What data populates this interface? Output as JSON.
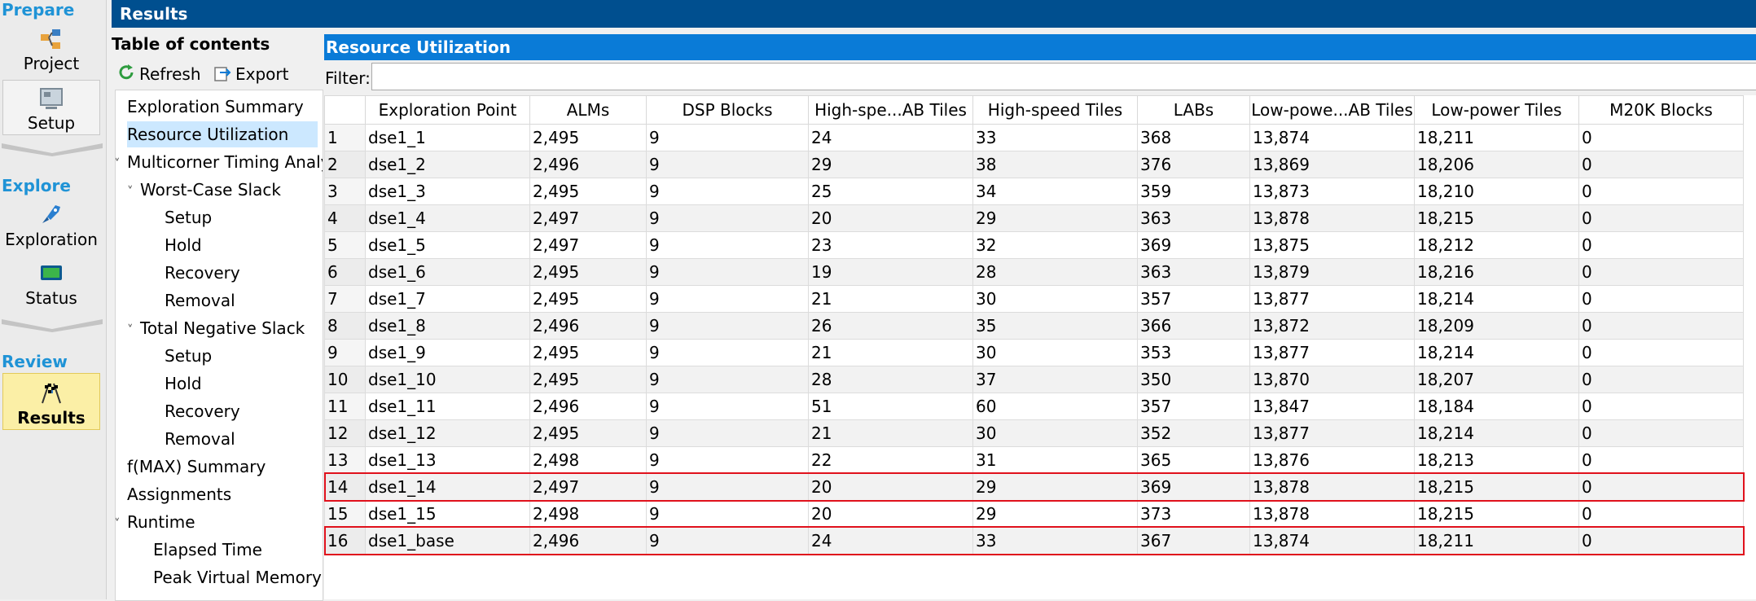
{
  "rail": {
    "prepare_label": "Prepare",
    "project_label": "Project",
    "setup_label": "Setup",
    "explore_label": "Explore",
    "exploration_label": "Exploration",
    "status_label": "Status",
    "review_label": "Review",
    "results_label": "Results",
    "section_color": "#1f93d6"
  },
  "window": {
    "title": "Results"
  },
  "toc": {
    "title": "Table of contents",
    "refresh_label": "Refresh",
    "export_label": "Export",
    "items": [
      {
        "label": "Exploration Summary",
        "level": 0,
        "caret": false,
        "selected": false
      },
      {
        "label": "Resource Utilization",
        "level": 0,
        "caret": false,
        "selected": true
      },
      {
        "label": "Multicorner Timing Analy",
        "level": 0,
        "caret": true,
        "selected": false
      },
      {
        "label": "Worst-Case Slack",
        "level": 1,
        "caret": true,
        "selected": false
      },
      {
        "label": "Setup",
        "level": 2,
        "caret": false,
        "selected": false
      },
      {
        "label": "Hold",
        "level": 2,
        "caret": false,
        "selected": false
      },
      {
        "label": "Recovery",
        "level": 2,
        "caret": false,
        "selected": false
      },
      {
        "label": "Removal",
        "level": 2,
        "caret": false,
        "selected": false
      },
      {
        "label": "Total Negative Slack",
        "level": 1,
        "caret": true,
        "selected": false
      },
      {
        "label": "Setup",
        "level": 2,
        "caret": false,
        "selected": false
      },
      {
        "label": "Hold",
        "level": 2,
        "caret": false,
        "selected": false
      },
      {
        "label": "Recovery",
        "level": 2,
        "caret": false,
        "selected": false
      },
      {
        "label": "Removal",
        "level": 2,
        "caret": false,
        "selected": false
      },
      {
        "label": "f(MAX) Summary",
        "level": 0,
        "caret": false,
        "selected": false
      },
      {
        "label": "Assignments",
        "level": 0,
        "caret": false,
        "selected": false
      },
      {
        "label": "Runtime",
        "level": 0,
        "caret": true,
        "selected": false
      },
      {
        "label": "Elapsed Time",
        "level": 1,
        "caret": false,
        "selected": false
      },
      {
        "label": "Peak Virtual Memory",
        "level": 1,
        "caret": false,
        "selected": false
      }
    ]
  },
  "panel": {
    "title": "Resource Utilization",
    "filter_label": "Filter:",
    "filter_value": "",
    "columns": [
      "",
      "Exploration Point",
      "ALMs",
      "DSP Blocks",
      "High-spe...AB Tiles",
      "High-speed Tiles",
      "LABs",
      "Low-powe...AB Tiles",
      "Low-power Tiles",
      "M20K Blocks"
    ],
    "rows": [
      [
        "1",
        "dse1_1",
        "2,495",
        "9",
        "24",
        "33",
        "368",
        "13,874",
        "18,211",
        "0"
      ],
      [
        "2",
        "dse1_2",
        "2,496",
        "9",
        "29",
        "38",
        "376",
        "13,869",
        "18,206",
        "0"
      ],
      [
        "3",
        "dse1_3",
        "2,495",
        "9",
        "25",
        "34",
        "359",
        "13,873",
        "18,210",
        "0"
      ],
      [
        "4",
        "dse1_4",
        "2,497",
        "9",
        "20",
        "29",
        "363",
        "13,878",
        "18,215",
        "0"
      ],
      [
        "5",
        "dse1_5",
        "2,497",
        "9",
        "23",
        "32",
        "369",
        "13,875",
        "18,212",
        "0"
      ],
      [
        "6",
        "dse1_6",
        "2,495",
        "9",
        "19",
        "28",
        "363",
        "13,879",
        "18,216",
        "0"
      ],
      [
        "7",
        "dse1_7",
        "2,495",
        "9",
        "21",
        "30",
        "357",
        "13,877",
        "18,214",
        "0"
      ],
      [
        "8",
        "dse1_8",
        "2,496",
        "9",
        "26",
        "35",
        "366",
        "13,872",
        "18,209",
        "0"
      ],
      [
        "9",
        "dse1_9",
        "2,495",
        "9",
        "21",
        "30",
        "353",
        "13,877",
        "18,214",
        "0"
      ],
      [
        "10",
        "dse1_10",
        "2,495",
        "9",
        "28",
        "37",
        "350",
        "13,870",
        "18,207",
        "0"
      ],
      [
        "11",
        "dse1_11",
        "2,496",
        "9",
        "51",
        "60",
        "357",
        "13,847",
        "18,184",
        "0"
      ],
      [
        "12",
        "dse1_12",
        "2,495",
        "9",
        "21",
        "30",
        "352",
        "13,877",
        "18,214",
        "0"
      ],
      [
        "13",
        "dse1_13",
        "2,498",
        "9",
        "22",
        "31",
        "365",
        "13,876",
        "18,213",
        "0"
      ],
      [
        "14",
        "dse1_14",
        "2,497",
        "9",
        "20",
        "29",
        "369",
        "13,878",
        "18,215",
        "0"
      ],
      [
        "15",
        "dse1_15",
        "2,498",
        "9",
        "20",
        "29",
        "373",
        "13,878",
        "18,215",
        "0"
      ],
      [
        "16",
        "dse1_base",
        "2,496",
        "9",
        "24",
        "33",
        "367",
        "13,874",
        "18,211",
        "0"
      ]
    ],
    "highlighted_rows": [
      "14",
      "16"
    ],
    "highlight_color": "#e0111c"
  }
}
